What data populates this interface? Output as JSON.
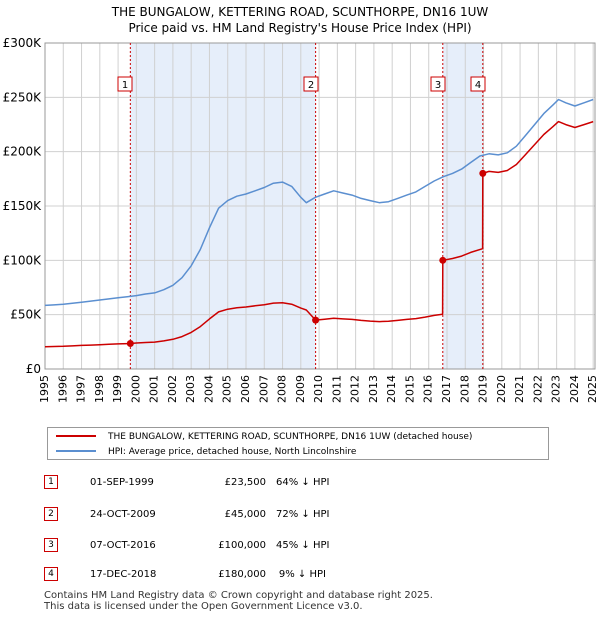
{
  "title_line1": "THE BUNGALOW, KETTERING ROAD, SCUNTHORPE, DN16 1UW",
  "title_line2": "Price paid vs. HM Land Registry's House Price Index (HPI)",
  "colors": {
    "red_series": "#cc0000",
    "blue_series": "#5b8fd0",
    "shade": "#e6eefa",
    "grid": "#d0d0d0"
  },
  "chart_data": {
    "type": "line",
    "title": "Price paid vs. HM Land Registry's House Price Index (HPI)",
    "xlabel": "",
    "ylabel": "",
    "xlim": [
      1995,
      2025.1
    ],
    "ylim": [
      0,
      300000
    ],
    "grid": true,
    "x_ticks": [
      1995,
      1996,
      1997,
      1998,
      1999,
      2000,
      2001,
      2002,
      2003,
      2004,
      2005,
      2006,
      2007,
      2008,
      2009,
      2010,
      2011,
      2012,
      2013,
      2014,
      2015,
      2016,
      2017,
      2018,
      2019,
      2020,
      2021,
      2022,
      2023,
      2024,
      2025
    ],
    "y_ticks": [
      {
        "value": 0,
        "label": "£0"
      },
      {
        "value": 50000,
        "label": "£50K"
      },
      {
        "value": 100000,
        "label": "£100K"
      },
      {
        "value": 150000,
        "label": "£150K"
      },
      {
        "value": 200000,
        "label": "£200K"
      },
      {
        "value": 250000,
        "label": "£250K"
      },
      {
        "value": 300000,
        "label": "£300K"
      }
    ],
    "shaded_ranges": [
      [
        1999.67,
        2009.81
      ],
      [
        2016.77,
        2018.96
      ]
    ],
    "series": [
      {
        "name": "HPI: Average price, detached house, North Lincolnshire",
        "color": "#5b8fd0",
        "points": [
          [
            1995.0,
            58500
          ],
          [
            1995.5,
            59000
          ],
          [
            1996.0,
            59500
          ],
          [
            1996.5,
            60500
          ],
          [
            1997.0,
            61500
          ],
          [
            1997.5,
            62500
          ],
          [
            1998.0,
            63500
          ],
          [
            1998.5,
            64500
          ],
          [
            1999.0,
            65500
          ],
          [
            1999.5,
            66500
          ],
          [
            2000.0,
            67500
          ],
          [
            2000.5,
            69000
          ],
          [
            2001.0,
            70000
          ],
          [
            2001.5,
            73000
          ],
          [
            2002.0,
            77000
          ],
          [
            2002.5,
            84000
          ],
          [
            2003.0,
            95000
          ],
          [
            2003.5,
            110000
          ],
          [
            2004.0,
            130000
          ],
          [
            2004.5,
            148000
          ],
          [
            2005.0,
            155000
          ],
          [
            2005.5,
            159000
          ],
          [
            2006.0,
            161000
          ],
          [
            2006.5,
            164000
          ],
          [
            2007.0,
            167000
          ],
          [
            2007.5,
            171000
          ],
          [
            2008.0,
            172000
          ],
          [
            2008.5,
            168000
          ],
          [
            2009.0,
            158000
          ],
          [
            2009.3,
            153000
          ],
          [
            2009.8,
            158000
          ],
          [
            2010.3,
            161000
          ],
          [
            2010.8,
            164000
          ],
          [
            2011.3,
            162000
          ],
          [
            2011.8,
            160000
          ],
          [
            2012.3,
            157000
          ],
          [
            2012.8,
            155000
          ],
          [
            2013.3,
            153000
          ],
          [
            2013.8,
            154000
          ],
          [
            2014.3,
            157000
          ],
          [
            2014.8,
            160000
          ],
          [
            2015.3,
            163000
          ],
          [
            2015.8,
            168000
          ],
          [
            2016.3,
            173000
          ],
          [
            2016.8,
            177000
          ],
          [
            2017.3,
            180000
          ],
          [
            2017.8,
            184000
          ],
          [
            2018.3,
            190000
          ],
          [
            2018.8,
            196000
          ],
          [
            2019.3,
            198000
          ],
          [
            2019.8,
            197000
          ],
          [
            2020.3,
            199000
          ],
          [
            2020.8,
            205000
          ],
          [
            2021.3,
            215000
          ],
          [
            2021.8,
            225000
          ],
          [
            2022.3,
            235000
          ],
          [
            2022.8,
            243000
          ],
          [
            2023.1,
            248000
          ],
          [
            2023.5,
            245000
          ],
          [
            2024.0,
            242000
          ],
          [
            2024.5,
            245000
          ],
          [
            2025.0,
            248000
          ]
        ]
      },
      {
        "name": "THE BUNGALOW, KETTERING ROAD, SCUNTHORPE, DN16 1UW (detached house)",
        "color": "#cc0000",
        "points": [
          [
            1995.0,
            20500
          ],
          [
            1995.5,
            20700
          ],
          [
            1996.0,
            20900
          ],
          [
            1996.5,
            21300
          ],
          [
            1997.0,
            21700
          ],
          [
            1997.5,
            22000
          ],
          [
            1998.0,
            22400
          ],
          [
            1998.5,
            22700
          ],
          [
            1999.0,
            23100
          ],
          [
            1999.67,
            23500
          ],
          [
            2000.0,
            23900
          ],
          [
            2000.5,
            24400
          ],
          [
            2001.0,
            24800
          ],
          [
            2001.5,
            25900
          ],
          [
            2002.0,
            27300
          ],
          [
            2002.5,
            29800
          ],
          [
            2003.0,
            33700
          ],
          [
            2003.5,
            39000
          ],
          [
            2004.0,
            46100
          ],
          [
            2004.5,
            52500
          ],
          [
            2005.0,
            55000
          ],
          [
            2005.5,
            56400
          ],
          [
            2006.0,
            57100
          ],
          [
            2006.5,
            58200
          ],
          [
            2007.0,
            59200
          ],
          [
            2007.5,
            60600
          ],
          [
            2008.0,
            61000
          ],
          [
            2008.5,
            59600
          ],
          [
            2009.0,
            56000
          ],
          [
            2009.3,
            54300
          ],
          [
            2009.81,
            45000
          ],
          [
            2010.3,
            45800
          ],
          [
            2010.8,
            46700
          ],
          [
            2011.3,
            46100
          ],
          [
            2011.8,
            45600
          ],
          [
            2012.3,
            44700
          ],
          [
            2012.8,
            44100
          ],
          [
            2013.3,
            43600
          ],
          [
            2013.8,
            43900
          ],
          [
            2014.3,
            44700
          ],
          [
            2014.8,
            45600
          ],
          [
            2015.3,
            46400
          ],
          [
            2015.8,
            47800
          ],
          [
            2016.3,
            49300
          ],
          [
            2016.76,
            50400
          ],
          [
            2016.77,
            100000
          ],
          [
            2017.3,
            101700
          ],
          [
            2017.8,
            103900
          ],
          [
            2018.3,
            107300
          ],
          [
            2018.95,
            110700
          ],
          [
            2018.96,
            180000
          ],
          [
            2019.3,
            181800
          ],
          [
            2019.8,
            180900
          ],
          [
            2020.3,
            182700
          ],
          [
            2020.8,
            188200
          ],
          [
            2021.3,
            197400
          ],
          [
            2021.8,
            206600
          ],
          [
            2022.3,
            215800
          ],
          [
            2022.8,
            223100
          ],
          [
            2023.1,
            227700
          ],
          [
            2023.5,
            224900
          ],
          [
            2024.0,
            222200
          ],
          [
            2024.5,
            224900
          ],
          [
            2025.0,
            227700
          ]
        ]
      }
    ],
    "transactions": [
      {
        "label": "1",
        "x": 1999.67,
        "price": 23500
      },
      {
        "label": "2",
        "x": 2009.81,
        "price": 45000
      },
      {
        "label": "3",
        "x": 2016.77,
        "price": 100000
      },
      {
        "label": "4",
        "x": 2018.96,
        "price": 180000
      }
    ]
  },
  "legend": {
    "items": [
      {
        "label": "THE BUNGALOW, KETTERING ROAD, SCUNTHORPE, DN16 1UW (detached house)",
        "color": "#cc0000"
      },
      {
        "label": "HPI: Average price, detached house, North Lincolnshire",
        "color": "#5b8fd0"
      }
    ]
  },
  "table": [
    {
      "num": "1",
      "date": "01-SEP-1999",
      "price": "£23,500",
      "hpi": "64% ↓ HPI"
    },
    {
      "num": "2",
      "date": "24-OCT-2009",
      "price": "£45,000",
      "hpi": "72% ↓ HPI"
    },
    {
      "num": "3",
      "date": "07-OCT-2016",
      "price": "£100,000",
      "hpi": "45% ↓ HPI"
    },
    {
      "num": "4",
      "date": "17-DEC-2018",
      "price": "£180,000",
      "hpi": "9% ↓ HPI"
    }
  ],
  "footer": {
    "line1": "Contains HM Land Registry data © Crown copyright and database right 2025.",
    "line2": "This data is licensed under the Open Government Licence v3.0."
  }
}
